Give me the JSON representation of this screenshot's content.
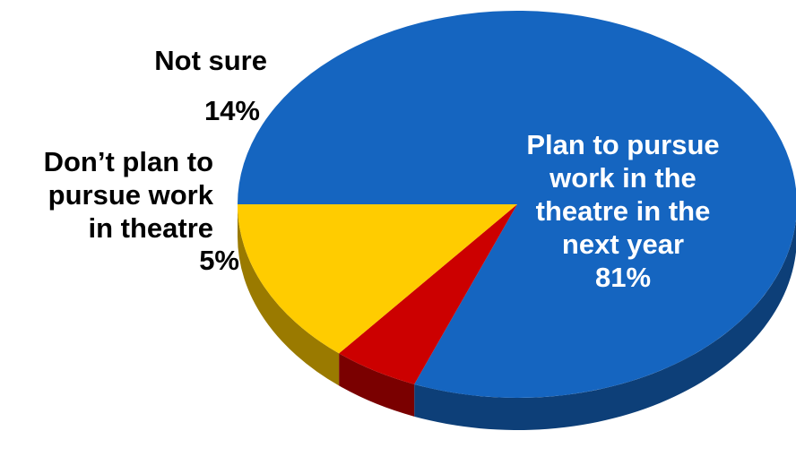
{
  "chart_data": {
    "type": "pie",
    "style": "3d",
    "slices": [
      {
        "label_lines": [
          "Plan to pursue",
          "work in the",
          "theatre in the",
          "next year"
        ],
        "value": 81,
        "value_label": "81%",
        "color": "#1565C0",
        "side_color": "#0D3F78"
      },
      {
        "label_lines": [
          "Don’t plan to",
          "pursue work",
          "in theatre"
        ],
        "value": 5,
        "value_label": "5%",
        "color": "#CC0000",
        "side_color": "#7A0000"
      },
      {
        "label_lines": [
          "Not sure"
        ],
        "value": 14,
        "value_label": "14%",
        "color": "#FFCC00",
        "side_color": "#9A7A00"
      }
    ],
    "legend": "none"
  }
}
